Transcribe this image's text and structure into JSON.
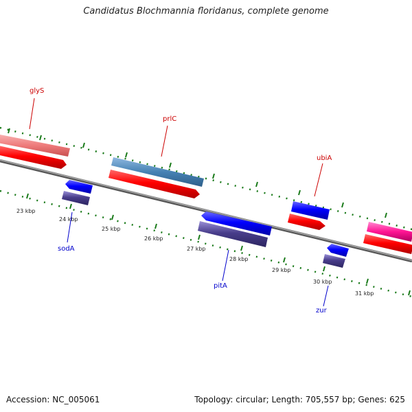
{
  "title": "Candidatus Blochmannia floridanus, complete genome",
  "footer": {
    "accession": "Accession: NC_005061",
    "summary": "Topology: circular; Length: 705,557 bp; Genes: 625"
  },
  "colors": {
    "backbone": "#808080",
    "tick": "#1a7a1a",
    "label_top": "#cc0000",
    "label_bottom": "#0000cc"
  },
  "kbp_ticks": [
    "23 kbp",
    "24 kbp",
    "25 kbp",
    "26 kbp",
    "27 kbp",
    "28 kbp",
    "29 kbp",
    "30 kbp",
    "31 kbp"
  ],
  "gene_labels": [
    {
      "name": "glyS"
    },
    {
      "name": "prlC"
    },
    {
      "name": "ubiA"
    },
    {
      "name": "sodA"
    },
    {
      "name": "pitA"
    },
    {
      "name": "zur"
    }
  ]
}
